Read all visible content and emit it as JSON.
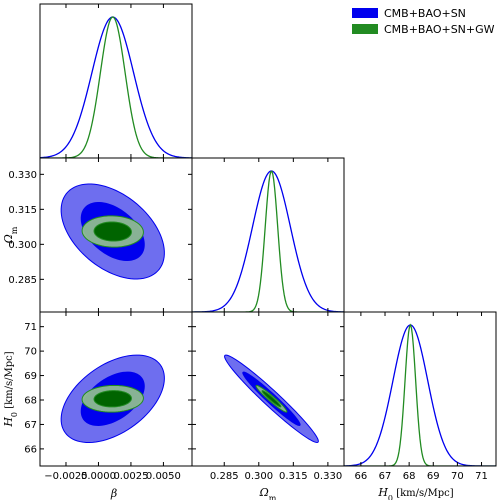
{
  "chart_data": {
    "type": "triangle-plot",
    "legend": {
      "placement": "top-right",
      "entries": [
        {
          "label": "CMB+BAO+SN",
          "color": "#0000ee"
        },
        {
          "label": "CMB+BAO+SN+GW",
          "color": "#228b22"
        }
      ]
    },
    "parameters": [
      {
        "key": "beta",
        "label": "β",
        "range": [
          -0.0045,
          0.0072
        ],
        "ticks": [
          -0.0025,
          0.0,
          0.0025,
          0.005
        ],
        "tick_labels": [
          "−0.0025",
          "0.0000",
          "0.0025",
          "0.0050"
        ]
      },
      {
        "key": "om",
        "label": "Ωm",
        "label_main": "Ω",
        "label_sub": "m",
        "range": [
          0.271,
          0.337
        ],
        "ticks": [
          0.285,
          0.3,
          0.315,
          0.33
        ],
        "tick_labels": [
          "0.285",
          "0.300",
          "0.315",
          "0.330"
        ],
        "row_ticks": [
          0.285,
          0.3,
          0.315,
          0.33
        ],
        "row_tick_labels": [
          "0.285",
          "0.300",
          "0.315",
          "0.330"
        ]
      },
      {
        "key": "h0",
        "label": "H0 [km/s/Mpc]",
        "label_main": "H",
        "label_sub": "0",
        "label_unit": " [km/s/Mpc]",
        "range": [
          65.3,
          71.6
        ],
        "ticks": [
          66,
          67,
          68,
          69,
          70,
          71
        ],
        "tick_labels": [
          "66",
          "67",
          "68",
          "69",
          "70",
          "71"
        ]
      }
    ],
    "row_tick_labels_om": [
      "0.285",
      "0.300",
      "0.315",
      "0.330"
    ],
    "series": [
      {
        "name": "CMB+BAO+SN",
        "color": "#0000ee",
        "fill_inner": "#0000ee",
        "fill_outer": "#6666ee",
        "mean": {
          "beta": 0.0011,
          "om": 0.3055,
          "h0": 68.05
        },
        "sigma": {
          "beta": 0.0016,
          "om": 0.0082,
          "h0": 0.72
        },
        "corr": {
          "beta_om": -0.45,
          "beta_h0": 0.47,
          "om_h0": -0.97
        }
      },
      {
        "name": "CMB+BAO+SN+GW",
        "color": "#228b22",
        "fill_inner": "#006400",
        "fill_outer": "#8fbc8f",
        "mean": {
          "beta": 0.0011,
          "om": 0.3055,
          "h0": 68.05
        },
        "sigma": {
          "beta": 0.00095,
          "om": 0.0027,
          "h0": 0.22
        },
        "corr": {
          "beta_om": -0.05,
          "beta_h0": 0.05,
          "om_h0": -0.96
        }
      }
    ],
    "contour_levels": [
      "68%",
      "95%"
    ],
    "grid": false
  }
}
